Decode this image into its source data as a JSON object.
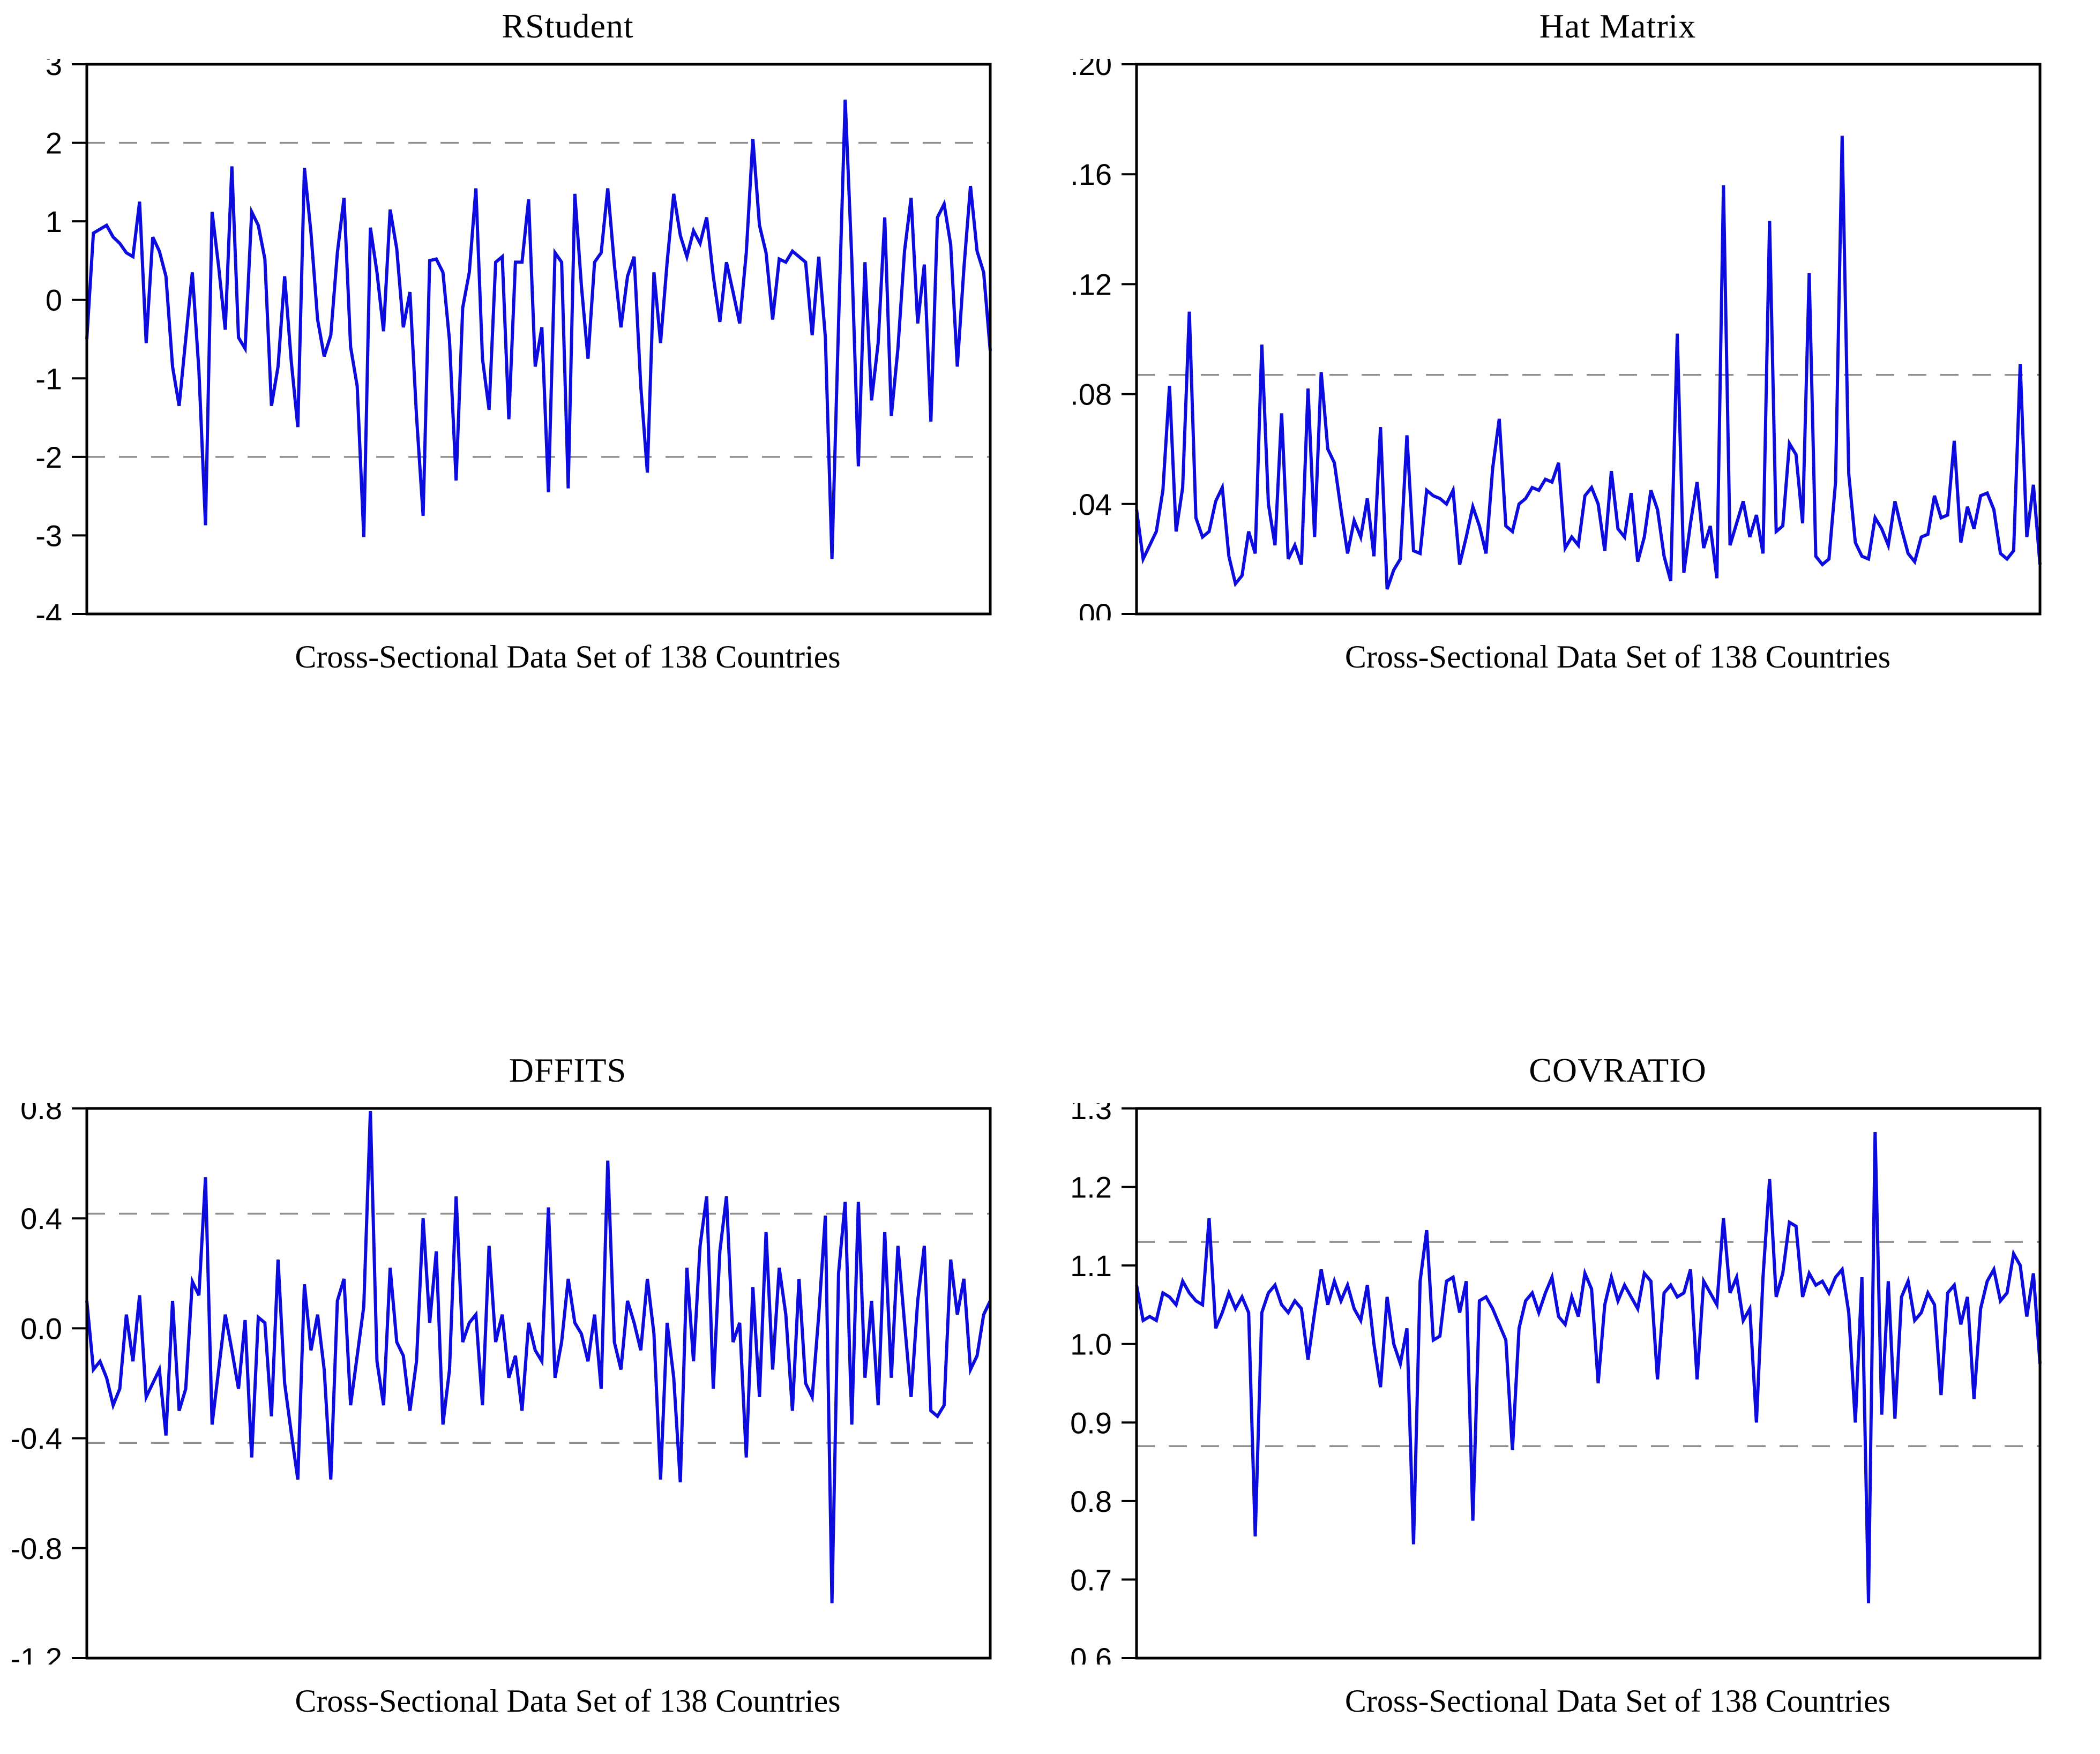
{
  "figure": {
    "background_color": "#ffffff",
    "frame_color": "#000000",
    "series_color": "#0c0ce0",
    "threshold_line_color": "#8f8f8f",
    "x_axis_label": "Cross-Sectional Data Set of 138 Countries",
    "observations": 138
  },
  "chart_data": [
    {
      "type": "line",
      "title": "RStudent",
      "xlabel": "Cross-Sectional Data Set of 138 Countries",
      "ylim": [
        -4,
        3
      ],
      "yticks": [
        3,
        2,
        1,
        0,
        -1,
        -2,
        -3,
        -4
      ],
      "ytick_labels": [
        "3",
        "2",
        "1",
        "0",
        "-1",
        "-2",
        "-3",
        "-4"
      ],
      "thresholds": [
        2,
        -2
      ],
      "grid": false,
      "legend": false,
      "line_color": "#0c0ce0",
      "threshold_color": "#8f8f8f",
      "x_range": [
        1,
        138
      ],
      "values": [
        -0.5,
        0.85,
        0.9,
        0.95,
        0.8,
        0.72,
        0.6,
        0.55,
        1.25,
        -0.55,
        0.8,
        0.62,
        0.3,
        -0.85,
        -1.35,
        -0.5,
        0.35,
        -0.9,
        -2.87,
        1.12,
        0.42,
        -0.38,
        1.7,
        -0.48,
        -0.62,
        1.12,
        0.95,
        0.52,
        -1.35,
        -0.85,
        0.3,
        -0.78,
        -1.62,
        1.68,
        0.85,
        -0.25,
        -0.72,
        -0.45,
        0.6,
        1.3,
        -0.6,
        -1.1,
        -3.02,
        0.92,
        0.35,
        -0.4,
        1.15,
        0.65,
        -0.35,
        0.1,
        -1.48,
        -2.75,
        0.5,
        0.52,
        0.35,
        -0.52,
        -2.3,
        -0.1,
        0.35,
        1.42,
        -0.75,
        -1.4,
        0.48,
        0.55,
        -1.52,
        0.48,
        0.48,
        1.28,
        -0.85,
        -0.35,
        -2.45,
        0.6,
        0.48,
        -2.4,
        1.35,
        0.18,
        -0.75,
        0.48,
        0.6,
        1.42,
        0.45,
        -0.35,
        0.3,
        0.55,
        -1.1,
        -2.2,
        0.35,
        -0.55,
        0.48,
        1.35,
        0.82,
        0.55,
        0.88,
        0.72,
        1.05,
        0.3,
        -0.28,
        0.48,
        0.1,
        -0.3,
        0.6,
        2.05,
        0.95,
        0.6,
        -0.25,
        0.52,
        0.48,
        0.62,
        0.55,
        0.48,
        -0.45,
        0.55,
        -0.48,
        -3.3,
        -0.3,
        2.55,
        0.52,
        -2.12,
        0.48,
        -1.28,
        -0.55,
        1.05,
        -1.48,
        -0.62,
        0.62,
        1.3,
        -0.3,
        0.45,
        -1.55,
        1.05,
        1.22,
        0.7,
        -0.85,
        0.4,
        1.45,
        0.62,
        0.35,
        -0.65
      ]
    },
    {
      "type": "line",
      "title": "Hat Matrix",
      "xlabel": "Cross-Sectional Data Set of 138 Countries",
      "ylim": [
        0,
        0.2
      ],
      "yticks": [
        0.2,
        0.16,
        0.12,
        0.08,
        0.04,
        0.0
      ],
      "ytick_labels": [
        ".20",
        ".16",
        ".12",
        ".08",
        ".04",
        ".00"
      ],
      "thresholds": [
        0.087
      ],
      "grid": false,
      "legend": false,
      "line_color": "#0c0ce0",
      "threshold_color": "#8f8f8f",
      "x_range": [
        1,
        138
      ],
      "values": [
        0.038,
        0.02,
        0.025,
        0.03,
        0.045,
        0.083,
        0.03,
        0.046,
        0.11,
        0.035,
        0.028,
        0.03,
        0.041,
        0.046,
        0.021,
        0.011,
        0.014,
        0.03,
        0.022,
        0.098,
        0.04,
        0.025,
        0.073,
        0.02,
        0.025,
        0.018,
        0.082,
        0.028,
        0.088,
        0.06,
        0.055,
        0.038,
        0.022,
        0.034,
        0.028,
        0.042,
        0.021,
        0.068,
        0.009,
        0.016,
        0.02,
        0.065,
        0.023,
        0.022,
        0.045,
        0.043,
        0.042,
        0.04,
        0.045,
        0.018,
        0.028,
        0.039,
        0.032,
        0.022,
        0.053,
        0.071,
        0.032,
        0.03,
        0.04,
        0.042,
        0.046,
        0.045,
        0.049,
        0.048,
        0.055,
        0.024,
        0.028,
        0.025,
        0.043,
        0.046,
        0.04,
        0.023,
        0.052,
        0.031,
        0.028,
        0.044,
        0.019,
        0.028,
        0.045,
        0.038,
        0.021,
        0.012,
        0.102,
        0.015,
        0.033,
        0.048,
        0.024,
        0.032,
        0.013,
        0.156,
        0.025,
        0.033,
        0.041,
        0.028,
        0.036,
        0.022,
        0.143,
        0.03,
        0.032,
        0.062,
        0.058,
        0.033,
        0.124,
        0.021,
        0.018,
        0.02,
        0.048,
        0.174,
        0.051,
        0.026,
        0.021,
        0.02,
        0.035,
        0.031,
        0.025,
        0.041,
        0.031,
        0.022,
        0.019,
        0.028,
        0.029,
        0.043,
        0.035,
        0.036,
        0.063,
        0.026,
        0.039,
        0.031,
        0.043,
        0.044,
        0.038,
        0.022,
        0.02,
        0.023,
        0.091,
        0.028,
        0.047,
        0.018
      ]
    },
    {
      "type": "line",
      "title": "DFFITS",
      "xlabel": "Cross-Sectional Data Set of 138 Countries",
      "ylim": [
        -1.2,
        0.8
      ],
      "yticks": [
        0.8,
        0.4,
        0.0,
        -0.4,
        -0.8,
        -1.2
      ],
      "ytick_labels": [
        "0.8",
        "0.4",
        "0.0",
        "-0.4",
        "-0.8",
        "-1.2"
      ],
      "thresholds": [
        0.417,
        -0.417
      ],
      "grid": false,
      "legend": false,
      "line_color": "#0c0ce0",
      "threshold_color": "#8f8f8f",
      "x_range": [
        1,
        138
      ],
      "values": [
        0.1,
        -0.15,
        -0.12,
        -0.18,
        -0.28,
        -0.22,
        0.05,
        -0.12,
        0.12,
        -0.25,
        -0.2,
        -0.15,
        -0.39,
        0.1,
        -0.3,
        -0.22,
        0.17,
        0.12,
        0.55,
        -0.35,
        -0.15,
        0.05,
        -0.08,
        -0.22,
        0.03,
        -0.47,
        0.04,
        0.02,
        -0.32,
        0.25,
        -0.2,
        -0.38,
        -0.55,
        0.16,
        -0.08,
        0.05,
        -0.15,
        -0.55,
        0.1,
        0.18,
        -0.28,
        -0.1,
        0.08,
        0.79,
        -0.12,
        -0.28,
        0.22,
        -0.05,
        -0.1,
        -0.3,
        -0.12,
        0.4,
        0.02,
        0.28,
        -0.35,
        -0.15,
        0.48,
        -0.05,
        0.02,
        0.05,
        -0.28,
        0.3,
        -0.05,
        0.05,
        -0.18,
        -0.1,
        -0.3,
        0.02,
        -0.08,
        -0.12,
        0.44,
        -0.18,
        -0.05,
        0.18,
        0.02,
        -0.02,
        -0.12,
        0.05,
        -0.22,
        0.61,
        -0.05,
        -0.15,
        0.1,
        0.02,
        -0.08,
        0.18,
        -0.02,
        -0.55,
        0.02,
        -0.18,
        -0.56,
        0.22,
        -0.12,
        0.3,
        0.48,
        -0.22,
        0.28,
        0.48,
        -0.05,
        0.02,
        -0.47,
        0.15,
        -0.25,
        0.35,
        -0.15,
        0.22,
        0.05,
        -0.3,
        0.18,
        -0.2,
        -0.25,
        0.05,
        0.41,
        -1.0,
        0.2,
        0.46,
        -0.35,
        0.46,
        -0.18,
        0.1,
        -0.28,
        0.35,
        -0.18,
        0.3,
        0.02,
        -0.25,
        0.1,
        0.3,
        -0.3,
        -0.32,
        -0.28,
        0.25,
        0.05,
        0.18,
        -0.15,
        -0.1,
        0.05,
        0.1
      ]
    },
    {
      "type": "line",
      "title": "COVRATIO",
      "xlabel": "Cross-Sectional Data Set of 138 Countries",
      "ylim": [
        0.6,
        1.3
      ],
      "yticks": [
        1.3,
        1.2,
        1.1,
        1.0,
        0.9,
        0.8,
        0.7,
        0.6
      ],
      "ytick_labels": [
        "1.3",
        "1.2",
        "1.1",
        "1.0",
        "0.9",
        "0.8",
        "0.7",
        "0.6"
      ],
      "thresholds": [
        1.13,
        0.87
      ],
      "grid": false,
      "legend": false,
      "line_color": "#0c0ce0",
      "threshold_color": "#8f8f8f",
      "x_range": [
        1,
        138
      ],
      "values": [
        1.075,
        1.03,
        1.035,
        1.03,
        1.065,
        1.06,
        1.05,
        1.08,
        1.065,
        1.055,
        1.05,
        1.16,
        1.02,
        1.04,
        1.065,
        1.045,
        1.06,
        1.04,
        0.755,
        1.04,
        1.065,
        1.075,
        1.05,
        1.04,
        1.055,
        1.045,
        0.98,
        1.04,
        1.095,
        1.05,
        1.08,
        1.055,
        1.075,
        1.045,
        1.03,
        1.075,
        1.0,
        0.945,
        1.06,
        1.0,
        0.975,
        1.02,
        0.745,
        1.08,
        1.145,
        1.005,
        1.01,
        1.08,
        1.085,
        1.04,
        1.08,
        0.775,
        1.055,
        1.06,
        1.045,
        1.025,
        1.005,
        0.865,
        1.02,
        1.055,
        1.065,
        1.04,
        1.065,
        1.085,
        1.035,
        1.025,
        1.06,
        1.035,
        1.09,
        1.07,
        0.95,
        1.05,
        1.085,
        1.055,
        1.075,
        1.06,
        1.045,
        1.09,
        1.08,
        0.955,
        1.065,
        1.075,
        1.06,
        1.065,
        1.095,
        0.955,
        1.08,
        1.065,
        1.05,
        1.16,
        1.065,
        1.085,
        1.03,
        1.045,
        0.9,
        1.085,
        1.21,
        1.06,
        1.09,
        1.155,
        1.15,
        1.06,
        1.09,
        1.075,
        1.08,
        1.065,
        1.085,
        1.095,
        1.04,
        0.9,
        1.085,
        0.67,
        1.27,
        0.91,
        1.08,
        0.905,
        1.06,
        1.08,
        1.03,
        1.04,
        1.065,
        1.05,
        0.935,
        1.065,
        1.075,
        1.025,
        1.06,
        0.93,
        1.045,
        1.08,
        1.095,
        1.055,
        1.065,
        1.115,
        1.1,
        1.035,
        1.09,
        0.975
      ]
    }
  ]
}
